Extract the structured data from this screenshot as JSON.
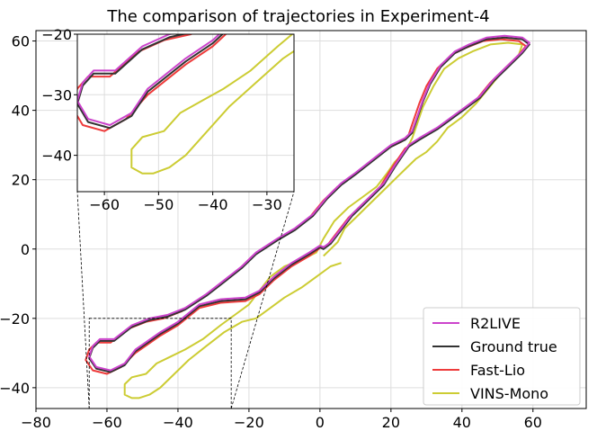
{
  "chart_data": {
    "type": "line",
    "title": "The comparison of trajectories in Experiment-4",
    "xlabel": "",
    "ylabel": "",
    "xlim": [
      -80,
      75
    ],
    "ylim": [
      -46,
      63
    ],
    "x_ticks": [
      -80,
      -60,
      -40,
      -20,
      0,
      20,
      40,
      60
    ],
    "y_ticks": [
      -40,
      -20,
      0,
      20,
      40,
      60
    ],
    "grid": true,
    "legend_position": "bottom-right",
    "colors": {
      "R2LIVE": "#cc44cc",
      "Ground true": "#333333",
      "Fast-Lio": "#ee3b3b",
      "VINS-Mono": "#cccc33"
    },
    "series": [
      {
        "name": "R2LIVE",
        "points": [
          [
            0,
            1
          ],
          [
            -3,
            -1
          ],
          [
            -8,
            -4
          ],
          [
            -13,
            -8
          ],
          [
            -17,
            -12
          ],
          [
            -21,
            -14
          ],
          [
            -28,
            -14.5
          ],
          [
            -34,
            -16
          ],
          [
            -40,
            -21
          ],
          [
            -45,
            -24
          ],
          [
            -52,
            -29
          ],
          [
            -55,
            -33
          ],
          [
            -59,
            -35
          ],
          [
            -63,
            -34
          ],
          [
            -65,
            -31
          ],
          [
            -64,
            -28
          ],
          [
            -62,
            -26
          ],
          [
            -58,
            -26
          ],
          [
            -53,
            -22
          ],
          [
            -48,
            -20
          ],
          [
            -43,
            -19
          ],
          [
            -38,
            -17
          ],
          [
            -32,
            -13
          ],
          [
            -27,
            -9
          ],
          [
            -22,
            -5
          ],
          [
            -18,
            -1
          ],
          [
            -12,
            3
          ],
          [
            -7,
            6
          ],
          [
            -2,
            10
          ],
          [
            2,
            15
          ],
          [
            6,
            19
          ],
          [
            10,
            22
          ],
          [
            15,
            26
          ],
          [
            20,
            30
          ],
          [
            24,
            32
          ],
          [
            26,
            34
          ],
          [
            27,
            37
          ],
          [
            29,
            43
          ],
          [
            31,
            48
          ],
          [
            34,
            53
          ],
          [
            38,
            57
          ],
          [
            42,
            59
          ],
          [
            47,
            61
          ],
          [
            52,
            61.5
          ],
          [
            57,
            61
          ],
          [
            59,
            59.5
          ],
          [
            57,
            57
          ],
          [
            53,
            53
          ],
          [
            49,
            49
          ],
          [
            45,
            44
          ],
          [
            41,
            41
          ],
          [
            37,
            38
          ],
          [
            33,
            35
          ],
          [
            28,
            32
          ],
          [
            25,
            30
          ],
          [
            23,
            27
          ],
          [
            21,
            24
          ],
          [
            18,
            19
          ],
          [
            15,
            16
          ],
          [
            12,
            13
          ],
          [
            9,
            10
          ],
          [
            6,
            6
          ],
          [
            3,
            2
          ],
          [
            1,
            0.5
          ],
          [
            0,
            1
          ]
        ]
      },
      {
        "name": "Ground true",
        "points": [
          [
            0,
            0.5
          ],
          [
            -3,
            -1.5
          ],
          [
            -8,
            -4.5
          ],
          [
            -13,
            -8.5
          ],
          [
            -17,
            -12.5
          ],
          [
            -21,
            -14.5
          ],
          [
            -28,
            -15
          ],
          [
            -34,
            -16.5
          ],
          [
            -40,
            -21.5
          ],
          [
            -45,
            -24.5
          ],
          [
            -52,
            -29.5
          ],
          [
            -55,
            -33.5
          ],
          [
            -59,
            -35.5
          ],
          [
            -63,
            -34.5
          ],
          [
            -65,
            -31.5
          ],
          [
            -64,
            -28.5
          ],
          [
            -62,
            -26.5
          ],
          [
            -58,
            -26.5
          ],
          [
            -53,
            -22.5
          ],
          [
            -48,
            -20.5
          ],
          [
            -43,
            -19.5
          ],
          [
            -38,
            -17.5
          ],
          [
            -32,
            -13.5
          ],
          [
            -27,
            -9.5
          ],
          [
            -22,
            -5.5
          ],
          [
            -18,
            -1.5
          ],
          [
            -12,
            2.5
          ],
          [
            -7,
            5.5
          ],
          [
            -2,
            9.5
          ],
          [
            2,
            14.5
          ],
          [
            6,
            18.5
          ],
          [
            10,
            21.5
          ],
          [
            15,
            25.5
          ],
          [
            20,
            29.5
          ],
          [
            24,
            31.5
          ],
          [
            26,
            33.5
          ],
          [
            27,
            36.5
          ],
          [
            29,
            42.5
          ],
          [
            31,
            47.5
          ],
          [
            34,
            52.5
          ],
          [
            38,
            56.5
          ],
          [
            42,
            58.5
          ],
          [
            47,
            60.5
          ],
          [
            52,
            61
          ],
          [
            57,
            60.5
          ],
          [
            59,
            59
          ],
          [
            57,
            56.5
          ],
          [
            53,
            52.5
          ],
          [
            49,
            48.5
          ],
          [
            45,
            43.5
          ],
          [
            41,
            40.5
          ],
          [
            37,
            37.5
          ],
          [
            33,
            34.5
          ],
          [
            28,
            31.5
          ],
          [
            25,
            29.5
          ],
          [
            23,
            26.5
          ],
          [
            21,
            23.5
          ],
          [
            18,
            18.5
          ],
          [
            15,
            15.5
          ],
          [
            12,
            12.5
          ],
          [
            9,
            9.5
          ],
          [
            6,
            5.5
          ],
          [
            3,
            1.5
          ],
          [
            1,
            0
          ],
          [
            0,
            0.5
          ]
        ]
      },
      {
        "name": "Fast-Lio",
        "points": [
          [
            0,
            0.3
          ],
          [
            -3,
            -2
          ],
          [
            -8,
            -5
          ],
          [
            -13,
            -9
          ],
          [
            -17,
            -13
          ],
          [
            -21,
            -15
          ],
          [
            -28,
            -15.5
          ],
          [
            -34,
            -17
          ],
          [
            -40,
            -22
          ],
          [
            -45,
            -25
          ],
          [
            -52,
            -30
          ],
          [
            -56,
            -34
          ],
          [
            -60,
            -36
          ],
          [
            -64,
            -35
          ],
          [
            -66,
            -32
          ],
          [
            -65,
            -29
          ],
          [
            -63,
            -27
          ],
          [
            -59,
            -27
          ],
          [
            -54,
            -23
          ],
          [
            -49,
            -21
          ],
          [
            -44,
            -20
          ],
          [
            -39,
            -18
          ],
          [
            -33,
            -14
          ],
          [
            -28,
            -10
          ],
          [
            -23,
            -6
          ],
          [
            -19,
            -2
          ],
          [
            -13,
            2
          ],
          [
            -8,
            5
          ],
          [
            -3,
            9
          ],
          [
            1,
            14
          ],
          [
            5,
            18
          ],
          [
            9,
            21
          ],
          [
            14,
            25
          ],
          [
            19,
            29
          ],
          [
            23,
            31
          ],
          [
            25,
            33
          ],
          [
            26,
            36
          ],
          [
            28,
            42
          ],
          [
            30,
            47
          ],
          [
            33,
            52
          ],
          [
            37,
            56
          ],
          [
            41,
            58
          ],
          [
            46,
            60
          ],
          [
            51,
            60.5
          ],
          [
            56,
            60
          ],
          [
            58,
            58.5
          ],
          [
            56,
            56
          ],
          [
            52,
            52
          ],
          [
            48,
            48
          ],
          [
            44,
            43
          ],
          [
            40,
            40
          ],
          [
            36,
            37
          ],
          [
            32,
            34
          ],
          [
            27,
            31
          ],
          [
            24,
            29
          ],
          [
            22,
            26
          ],
          [
            20,
            23
          ],
          [
            17,
            18
          ],
          [
            14,
            15
          ],
          [
            11,
            12
          ],
          [
            8,
            9
          ],
          [
            5,
            5
          ],
          [
            2,
            1
          ],
          [
            0,
            0.3
          ]
        ]
      },
      {
        "name": "VINS-Mono",
        "points": [
          [
            6,
            -4
          ],
          [
            3,
            -5
          ],
          [
            -1,
            -8
          ],
          [
            -5,
            -11
          ],
          [
            -10,
            -14
          ],
          [
            -14,
            -17
          ],
          [
            -18,
            -20
          ],
          [
            -22,
            -21
          ],
          [
            -27,
            -24
          ],
          [
            -32,
            -28
          ],
          [
            -37,
            -32
          ],
          [
            -41,
            -36
          ],
          [
            -45,
            -40
          ],
          [
            -48,
            -42
          ],
          [
            -51,
            -43
          ],
          [
            -53,
            -43
          ],
          [
            -55,
            -42
          ],
          [
            -55,
            -39
          ],
          [
            -53,
            -37
          ],
          [
            -49,
            -36
          ],
          [
            -46,
            -33
          ],
          [
            -42,
            -31
          ],
          [
            -38,
            -29
          ],
          [
            -33,
            -26
          ],
          [
            -28,
            -22
          ],
          [
            -24,
            -19
          ],
          [
            -20,
            -16
          ],
          [
            -17,
            -12
          ],
          [
            -14,
            -8
          ],
          [
            -10,
            -5
          ],
          [
            -5,
            -3
          ],
          [
            -1,
            -1
          ],
          [
            1,
            3
          ],
          [
            4,
            8
          ],
          [
            8,
            12
          ],
          [
            12,
            15
          ],
          [
            16,
            18
          ],
          [
            19,
            22
          ],
          [
            21,
            25
          ],
          [
            24,
            28
          ],
          [
            26,
            32
          ],
          [
            27,
            35
          ],
          [
            29,
            41
          ],
          [
            32,
            47
          ],
          [
            35,
            52
          ],
          [
            39,
            55
          ],
          [
            43,
            57
          ],
          [
            48,
            59
          ],
          [
            53,
            59.5
          ],
          [
            57,
            59
          ],
          [
            56,
            56
          ],
          [
            52,
            52
          ],
          [
            48,
            47
          ],
          [
            44,
            42
          ],
          [
            40,
            38
          ],
          [
            36,
            35
          ],
          [
            33,
            31
          ],
          [
            30,
            28
          ],
          [
            27,
            26
          ],
          [
            24,
            23
          ],
          [
            22,
            21
          ],
          [
            19,
            18
          ],
          [
            16,
            15
          ],
          [
            13,
            12
          ],
          [
            10,
            9
          ],
          [
            7,
            6
          ],
          [
            5,
            2
          ],
          [
            3,
            0
          ],
          [
            1,
            -2
          ]
        ]
      }
    ],
    "inset": {
      "xlim": [
        -65,
        -25
      ],
      "ylim": [
        -46,
        -20
      ],
      "x_ticks": [
        -60,
        -50,
        -40,
        -30
      ],
      "y_ticks": [
        -40,
        -30,
        -20
      ]
    }
  }
}
